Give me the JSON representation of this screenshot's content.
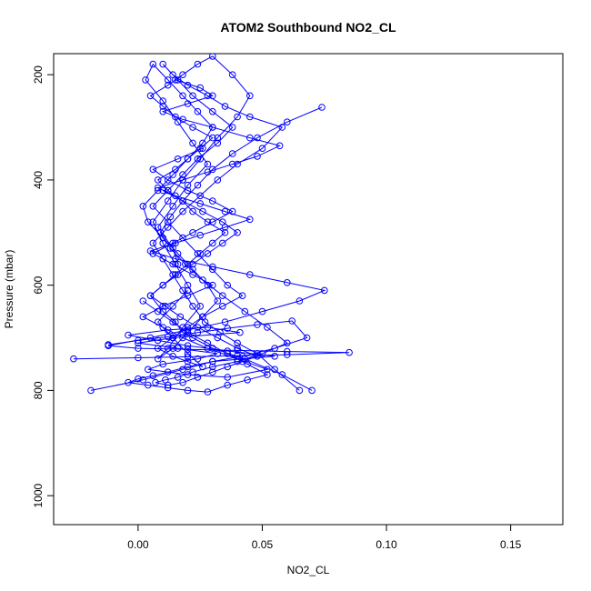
{
  "chart_data": {
    "type": "scatter",
    "title": "ATOM2 Southbound NO2_CL",
    "xlabel": "NO2_CL",
    "ylabel": "Pressure (mbar)",
    "xlim": [
      -0.034,
      0.171
    ],
    "ylim": [
      1055,
      160
    ],
    "y_reversed": true,
    "x_ticks": [
      "0.00",
      "0.05",
      "0.10",
      "0.15"
    ],
    "x_tick_values": [
      0.0,
      0.05,
      0.1,
      0.15
    ],
    "y_ticks": [
      "200",
      "400",
      "600",
      "800",
      "1000"
    ],
    "y_tick_values": [
      200,
      400,
      600,
      800,
      1000
    ],
    "grid": false,
    "style": {
      "color": "#0000ff",
      "marker": "open-circle",
      "connected": true
    },
    "series": [
      {
        "x": [
          0.07,
          0.058,
          0.043,
          0.03,
          0.022,
          0.018,
          0.015,
          0.01,
          0.005,
          0.01,
          0.015,
          0.02,
          0.025,
          0.03,
          0.035,
          0.028,
          0.022,
          0.018,
          0.012,
          0.008,
          0.015,
          0.02,
          0.025,
          0.03,
          0.022,
          0.015,
          0.01,
          0.005,
          0.012,
          0.018,
          0.024,
          0.03,
          0.038,
          0.045,
          0.04,
          0.032,
          0.025,
          0.018,
          0.012,
          0.006,
          0.01,
          0.015,
          0.02,
          0.025,
          0.018,
          0.012,
          0.008,
          0.014,
          0.02,
          0.026,
          0.032,
          0.028,
          0.022,
          0.016,
          0.01,
          0.004,
          0.002,
          0.008,
          0.014,
          0.02,
          0.026,
          0.03,
          0.024,
          0.018,
          0.012,
          0.006,
          0.003,
          0.01,
          0.016,
          0.022,
          0.028,
          0.02,
          0.014,
          0.008,
          0.014,
          0.016
        ],
        "y": [
          800,
          770,
          740,
          720,
          700,
          690,
          670,
          650,
          620,
          600,
          580,
          560,
          540,
          520,
          500,
          480,
          460,
          440,
          420,
          400,
          380,
          360,
          340,
          320,
          300,
          280,
          260,
          240,
          220,
          200,
          180,
          165,
          200,
          240,
          280,
          320,
          360,
          400,
          440,
          480,
          520,
          560,
          600,
          640,
          680,
          720,
          740,
          720,
          690,
          660,
          630,
          600,
          570,
          540,
          510,
          480,
          450,
          420,
          390,
          360,
          330,
          300,
          270,
          240,
          210,
          180,
          210,
          250,
          290,
          330,
          370,
          410,
          450,
          490,
          530,
          560
        ]
      },
      {
        "x": [
          0.065,
          0.055,
          0.048,
          0.04,
          0.033,
          0.027,
          0.022,
          0.018,
          0.014,
          0.01,
          0.006,
          0.012,
          0.018,
          0.025,
          0.032,
          0.04,
          0.05,
          0.058,
          0.045,
          0.035,
          0.028,
          0.02,
          0.014,
          0.01,
          0.016,
          0.022,
          0.03,
          0.038,
          0.032,
          0.024,
          0.018,
          0.012,
          0.006,
          0.012,
          0.018,
          0.024,
          0.03,
          0.036,
          0.042,
          0.034,
          0.026,
          0.02,
          0.014,
          0.008,
          0.014,
          0.02,
          0.026,
          0.02,
          0.014,
          0.008,
          0.014,
          0.02
        ],
        "y": [
          800,
          760,
          730,
          710,
          690,
          670,
          640,
          610,
          580,
          550,
          520,
          490,
          460,
          430,
          400,
          370,
          340,
          300,
          280,
          260,
          240,
          220,
          200,
          180,
          210,
          240,
          270,
          300,
          330,
          360,
          390,
          420,
          450,
          480,
          510,
          540,
          570,
          600,
          620,
          640,
          660,
          680,
          700,
          720,
          735,
          745,
          755,
          730,
          700,
          670,
          640,
          610
        ]
      },
      {
        "x": [
          -0.019,
          0.002,
          0.018,
          0.03,
          0.055,
          0.036,
          0.02,
          0.008,
          -0.004,
          0.012,
          0.028,
          0.041,
          0.014,
          0.0,
          0.016,
          0.032,
          0.024,
          0.01,
          0.004,
          0.02,
          0.036,
          0.052,
          0.04,
          0.028,
          0.018,
          0.01,
          0.002,
          0.01,
          0.02,
          0.03,
          0.022,
          0.014,
          0.006,
          0.014,
          0.022,
          0.03,
          0.038,
          0.03,
          0.02,
          0.012,
          0.006,
          0.016,
          0.026
        ],
        "y": [
          800,
          780,
          760,
          745,
          735,
          725,
          715,
          705,
          695,
          685,
          680,
          690,
          700,
          710,
          720,
          730,
          740,
          750,
          760,
          770,
          775,
          760,
          740,
          720,
          700,
          680,
          660,
          640,
          620,
          600,
          580,
          560,
          540,
          520,
          500,
          480,
          460,
          440,
          420,
          400,
          380,
          360,
          340
        ]
      },
      {
        "x": [
          -0.026,
          0.0,
          0.02,
          0.04,
          0.06,
          0.085,
          0.06,
          0.04,
          0.02,
          0.0,
          -0.012,
          0.005,
          0.02,
          0.035,
          0.05,
          0.065,
          0.075,
          0.06,
          0.045,
          0.03,
          0.015,
          0.005,
          0.015,
          0.025,
          0.035,
          0.045,
          0.035,
          0.025,
          0.015,
          0.008,
          0.018,
          0.028,
          0.038,
          0.048,
          0.057,
          0.045,
          0.03,
          0.018,
          0.01,
          0.02,
          0.03,
          0.025,
          0.015
        ],
        "y": [
          740,
          738,
          736,
          734,
          732,
          728,
          726,
          724,
          722,
          720,
          715,
          700,
          685,
          670,
          650,
          630,
          610,
          595,
          580,
          565,
          550,
          535,
          520,
          505,
          490,
          475,
          460,
          445,
          430,
          415,
          400,
          385,
          370,
          355,
          335,
          320,
          300,
          285,
          270,
          255,
          240,
          225,
          210
        ]
      },
      {
        "x": [
          0.074,
          0.06,
          0.048,
          0.038,
          0.03,
          0.024,
          0.018,
          0.013,
          0.009,
          0.013,
          0.019,
          0.026,
          0.034,
          0.043,
          0.052,
          0.06,
          0.05,
          0.04,
          0.03,
          0.022,
          0.016,
          0.011,
          0.007,
          0.012,
          0.018,
          0.024,
          0.03,
          0.036,
          0.042,
          0.048,
          0.04,
          0.032,
          0.024,
          0.017,
          0.011,
          0.005,
          0.01,
          0.016,
          0.022,
          0.028,
          0.034,
          0.04,
          0.034,
          0.026,
          0.018,
          0.01
        ],
        "y": [
          262,
          290,
          320,
          350,
          380,
          410,
          440,
          470,
          500,
          530,
          560,
          590,
          620,
          650,
          680,
          710,
          730,
          745,
          755,
          765,
          775,
          780,
          785,
          790,
          785,
          775,
          765,
          755,
          745,
          735,
          720,
          700,
          680,
          660,
          640,
          620,
          600,
          580,
          560,
          540,
          520,
          500,
          480,
          460,
          440,
          420
        ]
      },
      {
        "x": [
          -0.012,
          0.0,
          0.012,
          0.024,
          0.036,
          0.048,
          0.062,
          0.068,
          0.055,
          0.042,
          0.03,
          0.02,
          0.012,
          0.006,
          0.0,
          -0.004,
          0.004,
          0.012,
          0.02,
          0.028,
          0.036,
          0.044,
          0.052,
          0.044,
          0.036,
          0.028,
          0.02,
          0.014,
          0.008,
          0.002
        ],
        "y": [
          713,
          705,
          698,
          690,
          682,
          675,
          668,
          700,
          720,
          735,
          745,
          755,
          765,
          772,
          778,
          785,
          790,
          795,
          800,
          803,
          790,
          780,
          770,
          750,
          730,
          710,
          690,
          670,
          650,
          630
        ]
      }
    ]
  }
}
